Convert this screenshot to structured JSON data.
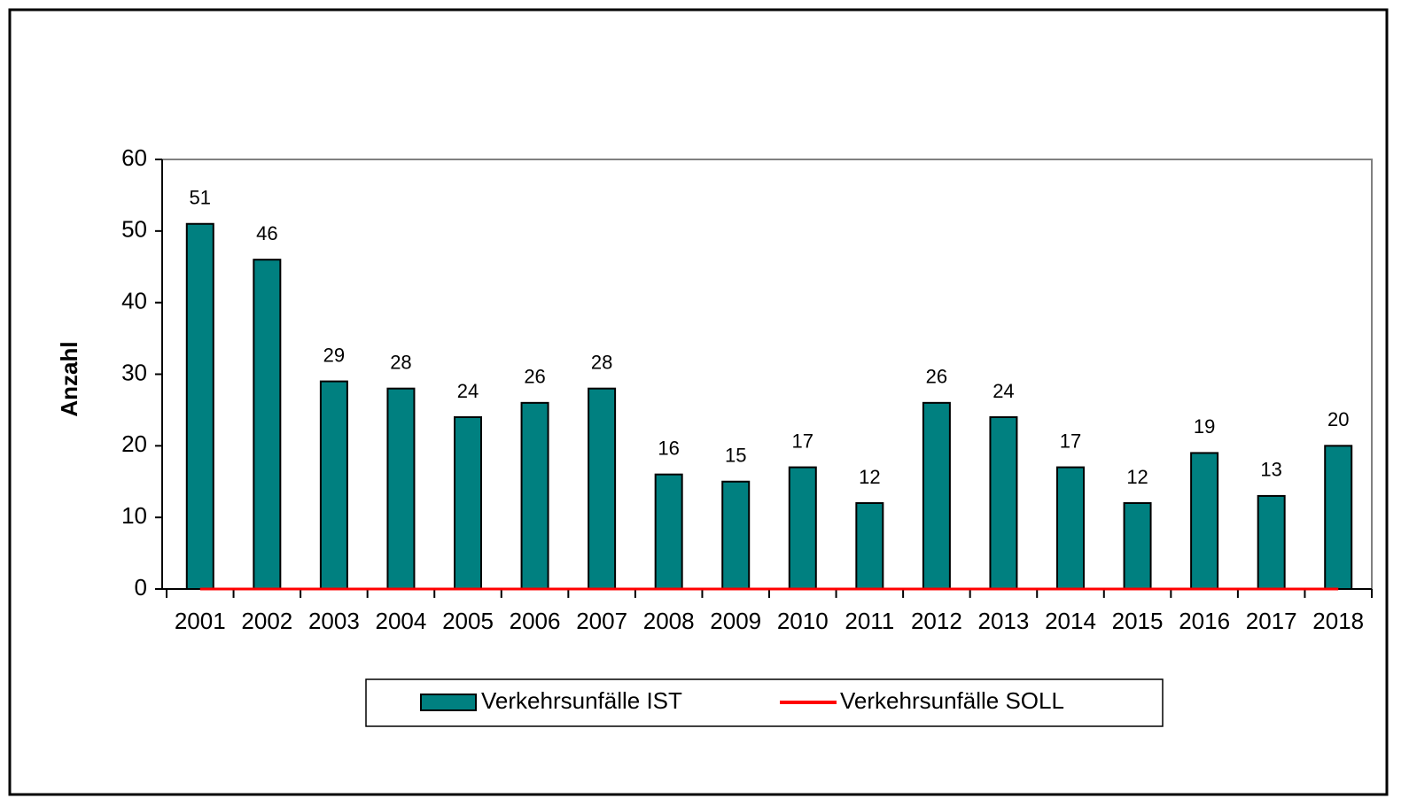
{
  "chart_data": {
    "type": "bar",
    "ylabel": "Anzahl",
    "categories": [
      "2001",
      "2002",
      "2003",
      "2004",
      "2005",
      "2006",
      "2007",
      "2008",
      "2009",
      "2010",
      "2011",
      "2012",
      "2013",
      "2014",
      "2015",
      "2016",
      "2017",
      "2018"
    ],
    "series": [
      {
        "name": "Verkehrsunfälle IST",
        "type": "bar",
        "color": "#008080",
        "values": [
          51,
          46,
          29,
          28,
          24,
          26,
          28,
          16,
          15,
          17,
          12,
          26,
          24,
          17,
          12,
          19,
          13,
          20
        ]
      },
      {
        "name": "Verkehrsunfälle SOLL",
        "type": "line",
        "color": "#ff0000",
        "values": [
          0,
          0,
          0,
          0,
          0,
          0,
          0,
          0,
          0,
          0,
          0,
          0,
          0,
          0,
          0,
          0,
          0,
          0
        ]
      }
    ],
    "ylim": [
      0,
      60
    ],
    "yticks": [
      0,
      10,
      20,
      30,
      40,
      50,
      60
    ],
    "grid": false,
    "legend": "bottom"
  }
}
